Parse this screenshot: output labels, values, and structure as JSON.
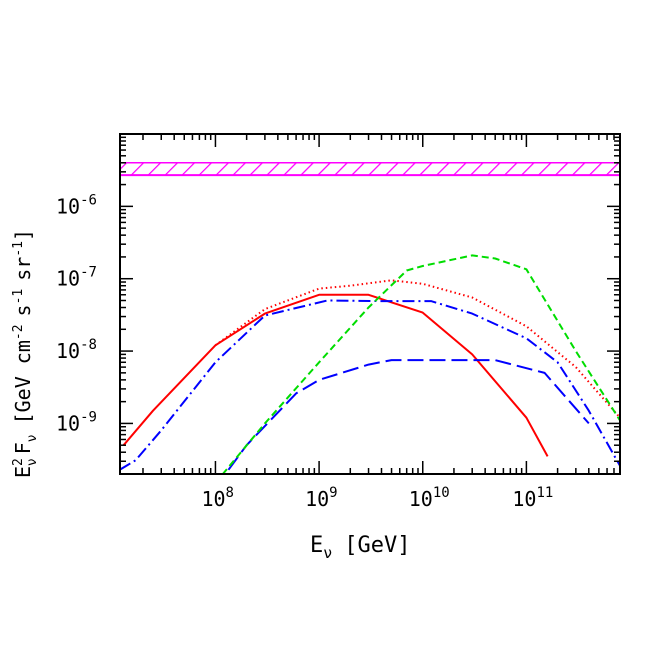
{
  "chart_data": {
    "type": "line",
    "xscale": "log",
    "yscale": "log",
    "xlim": [
      12000000.0,
      800000000000.0
    ],
    "ylim": [
      2e-10,
      1e-05
    ],
    "xlabel_main": "E",
    "xlabel_sub": "ν",
    "xlabel_unit": "[GeV]",
    "ylabel_e": "E",
    "ylabel_sup": "2",
    "ylabel_sub1": "ν",
    "ylabel_f": "F",
    "ylabel_sub2": "ν",
    "ylabel_unit_open": "[GeV cm",
    "ylabel_exp1": "-2",
    "ylabel_s": "s",
    "ylabel_exp2": "-1",
    "ylabel_sr": "sr",
    "ylabel_exp3": "-1",
    "ylabel_close": "]",
    "x_ticks": [
      {
        "value": 100000000.0,
        "base": "10",
        "exp": "8"
      },
      {
        "value": 1000000000.0,
        "base": "10",
        "exp": "9"
      },
      {
        "value": 10000000000.0,
        "base": "10",
        "exp": "10"
      },
      {
        "value": 100000000000.0,
        "base": "10",
        "exp": "11"
      }
    ],
    "y_ticks": [
      {
        "value": 1e-06,
        "base": "10",
        "exp": "-6"
      },
      {
        "value": 1e-07,
        "base": "10",
        "exp": "-7"
      },
      {
        "value": 1e-08,
        "base": "10",
        "exp": "-8"
      },
      {
        "value": 1e-09,
        "base": "10",
        "exp": "-9"
      }
    ],
    "band": {
      "y_min": 2.7e-06,
      "y_max": 4e-06,
      "color": "#ff00ff",
      "style": "hatched"
    },
    "series": [
      {
        "color": "#ff0000",
        "style": "solid",
        "points": [
          [
            13000000.0,
            5e-10
          ],
          [
            25000000.0,
            1.5e-09
          ],
          [
            100000000.0,
            1.2e-08
          ],
          [
            300000000.0,
            3.3e-08
          ],
          [
            1000000000.0,
            6e-08
          ],
          [
            3000000000.0,
            6e-08
          ],
          [
            10000000000.0,
            3.4e-08
          ],
          [
            30000000000.0,
            9e-09
          ],
          [
            100000000000.0,
            1.2e-09
          ],
          [
            160000000000.0,
            3.5e-10
          ]
        ]
      },
      {
        "color": "#ff0000",
        "style": "dotted",
        "points": [
          [
            100000000.0,
            1.2e-08
          ],
          [
            300000000.0,
            3.8e-08
          ],
          [
            1000000000.0,
            7.3e-08
          ],
          [
            2000000000.0,
            8e-08
          ],
          [
            5000000000.0,
            9.5e-08
          ],
          [
            10000000000.0,
            8.5e-08
          ],
          [
            30000000000.0,
            5.5e-08
          ],
          [
            100000000000.0,
            2.2e-08
          ],
          [
            300000000000.0,
            6e-09
          ],
          [
            800000000000.0,
            1.2e-09
          ]
        ]
      },
      {
        "color": "#0000ff",
        "style": "dash-dot",
        "points": [
          [
            12000000.0,
            2.3e-10
          ],
          [
            17000000.0,
            3.1e-10
          ],
          [
            30000000.0,
            8e-10
          ],
          [
            100000000.0,
            7e-09
          ],
          [
            300000000.0,
            3.1e-08
          ],
          [
            1200000000.0,
            5e-08
          ],
          [
            4000000000.0,
            4.9e-08
          ],
          [
            12000000000.0,
            4.9e-08
          ],
          [
            30000000000.0,
            3.3e-08
          ],
          [
            100000000000.0,
            1.5e-08
          ],
          [
            200000000000.0,
            7e-09
          ],
          [
            400000000000.0,
            1.5e-09
          ],
          [
            800000000000.0,
            2.6e-10
          ]
        ]
      },
      {
        "color": "#0000ff",
        "style": "long-dash",
        "points": [
          [
            100000000.0,
            1.3e-10
          ],
          [
            200000000.0,
            5e-10
          ],
          [
            600000000.0,
            2.6e-09
          ],
          [
            1000000000.0,
            4e-09
          ],
          [
            3000000000.0,
            6.5e-09
          ],
          [
            5000000000.0,
            7.5e-09
          ],
          [
            20000000000.0,
            7.5e-09
          ],
          [
            50000000000.0,
            7.5e-09
          ],
          [
            150000000000.0,
            5e-09
          ],
          [
            400000000000.0,
            1e-09
          ]
        ]
      },
      {
        "color": "#00dd00",
        "style": "short-dash",
        "points": [
          [
            100000000.0,
            1.5e-10
          ],
          [
            300000000.0,
            1e-09
          ],
          [
            1000000000.0,
            7e-09
          ],
          [
            3000000000.0,
            4e-08
          ],
          [
            7000000000.0,
            1.3e-07
          ],
          [
            10000000000.0,
            1.5e-07
          ],
          [
            30000000000.0,
            2.1e-07
          ],
          [
            50000000000.0,
            1.9e-07
          ],
          [
            100000000000.0,
            1.35e-07
          ],
          [
            300000000000.0,
            1e-08
          ],
          [
            800000000000.0,
            1.1e-09
          ]
        ]
      }
    ]
  }
}
